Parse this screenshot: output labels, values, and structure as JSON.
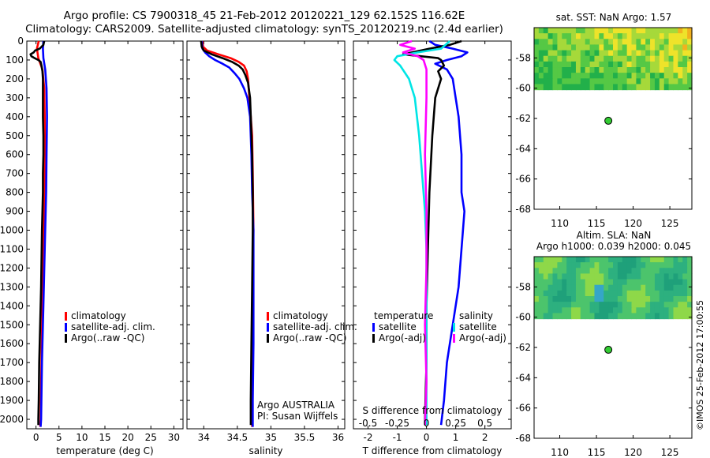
{
  "header": {
    "line1": "Argo profile: CS 7900318_45 21-Feb-2012 20120221_129 62.152S 116.62E",
    "line2": "Climatology: CARS2009. Satellite-adjusted climatology: synTS_20120219.nc (2.4d earlier)"
  },
  "credit": "©IMOS 25-Feb-2012 17:00:55",
  "colors": {
    "climatology": "#ff0000",
    "satellite_adj": "#0000ff",
    "argo": "#000000",
    "sat_salinity": "#00e5e5",
    "argo_salinity_adj": "#ff00ff",
    "map_land_bg": "#ffffff",
    "float_marker": "#33cc33"
  },
  "depth_axis": {
    "ticks": [
      0,
      100,
      200,
      300,
      400,
      500,
      600,
      700,
      800,
      900,
      1000,
      1100,
      1200,
      1300,
      1400,
      1500,
      1600,
      1700,
      1800,
      1900,
      2000
    ],
    "range": [
      0,
      2050
    ],
    "inverted": true
  },
  "chart_data": [
    {
      "id": "temperature",
      "type": "line",
      "xlabel": "temperature (deg C)",
      "xlim": [
        -2,
        32
      ],
      "xticks": [
        0,
        5,
        10,
        15,
        20,
        25,
        30
      ],
      "legend": [
        "climatology",
        "satellite-adj. clim.",
        "Argo(..raw -QC)"
      ],
      "series": [
        {
          "name": "climatology",
          "color_key": "climatology",
          "points": [
            [
              0.6,
              0
            ],
            [
              0.2,
              40
            ],
            [
              0.5,
              90
            ],
            [
              1.4,
              150
            ],
            [
              1.8,
              250
            ],
            [
              1.9,
              400
            ],
            [
              1.9,
              600
            ],
            [
              1.8,
              800
            ],
            [
              1.6,
              1100
            ],
            [
              1.4,
              1400
            ],
            [
              1.2,
              1700
            ],
            [
              1.0,
              2000
            ],
            [
              0.9,
              2040
            ]
          ]
        },
        {
          "name": "satellite-adj. clim.",
          "color_key": "satellite_adj",
          "points": [
            [
              1.6,
              0
            ],
            [
              1.5,
              40
            ],
            [
              1.6,
              90
            ],
            [
              2.0,
              150
            ],
            [
              2.3,
              250
            ],
            [
              2.4,
              400
            ],
            [
              2.3,
              600
            ],
            [
              2.2,
              800
            ],
            [
              1.9,
              1100
            ],
            [
              1.6,
              1400
            ],
            [
              1.3,
              1700
            ],
            [
              1.1,
              2000
            ],
            [
              1.0,
              2040
            ]
          ]
        },
        {
          "name": "Argo(..raw -QC)",
          "color_key": "argo",
          "points": [
            [
              1.8,
              0
            ],
            [
              1.6,
              20
            ],
            [
              0.8,
              40
            ],
            [
              -0.2,
              50
            ],
            [
              -0.5,
              60
            ],
            [
              -1.2,
              70
            ],
            [
              -1.0,
              80
            ],
            [
              -0.3,
              90
            ],
            [
              0.5,
              100
            ],
            [
              1.0,
              110
            ],
            [
              1.2,
              130
            ],
            [
              1.4,
              160
            ],
            [
              1.5,
              200
            ],
            [
              1.5,
              300
            ],
            [
              1.5,
              400
            ],
            [
              1.6,
              500
            ],
            [
              1.6,
              600
            ],
            [
              1.5,
              700
            ],
            [
              1.5,
              800
            ],
            [
              1.3,
              1000
            ],
            [
              1.1,
              1300
            ],
            [
              0.9,
              1500
            ],
            [
              0.7,
              1700
            ],
            [
              0.6,
              1900
            ],
            [
              0.5,
              2000
            ],
            [
              0.5,
              2030
            ]
          ]
        }
      ]
    },
    {
      "id": "salinity",
      "type": "line",
      "xlabel": "salinity",
      "xlim": [
        33.75,
        36.1
      ],
      "xticks": [
        34,
        34.5,
        35,
        35.5,
        36
      ],
      "legend": [
        "climatology",
        "satellite-adj. clim.",
        "Argo(..raw -QC)"
      ],
      "annotation": [
        "Argo AUSTRALIA",
        "PI: Susan Wijffels"
      ],
      "series": [
        {
          "name": "climatology",
          "color_key": "climatology",
          "points": [
            [
              33.98,
              0
            ],
            [
              33.99,
              30
            ],
            [
              34.05,
              50
            ],
            [
              34.22,
              70
            ],
            [
              34.4,
              90
            ],
            [
              34.52,
              110
            ],
            [
              34.6,
              130
            ],
            [
              34.64,
              160
            ],
            [
              34.66,
              200
            ],
            [
              34.68,
              300
            ],
            [
              34.7,
              400
            ],
            [
              34.72,
              500
            ],
            [
              34.73,
              700
            ],
            [
              34.74,
              1000
            ],
            [
              34.73,
              1300
            ],
            [
              34.73,
              1600
            ],
            [
              34.72,
              1900
            ],
            [
              34.72,
              2040
            ]
          ]
        },
        {
          "name": "satellite-adj. clim.",
          "color_key": "satellite_adj",
          "points": [
            [
              33.97,
              0
            ],
            [
              33.98,
              40
            ],
            [
              34.02,
              60
            ],
            [
              34.08,
              80
            ],
            [
              34.17,
              100
            ],
            [
              34.28,
              120
            ],
            [
              34.38,
              140
            ],
            [
              34.46,
              170
            ],
            [
              34.53,
              200
            ],
            [
              34.6,
              250
            ],
            [
              34.65,
              300
            ],
            [
              34.69,
              400
            ],
            [
              34.71,
              600
            ],
            [
              34.72,
              800
            ],
            [
              34.74,
              1000
            ],
            [
              34.74,
              1300
            ],
            [
              34.74,
              1600
            ],
            [
              34.73,
              1900
            ],
            [
              34.73,
              2040
            ]
          ]
        },
        {
          "name": "Argo(..raw -QC)",
          "color_key": "argo",
          "points": [
            [
              33.96,
              0
            ],
            [
              33.97,
              30
            ],
            [
              34.0,
              50
            ],
            [
              34.12,
              70
            ],
            [
              34.28,
              90
            ],
            [
              34.42,
              110
            ],
            [
              34.52,
              130
            ],
            [
              34.58,
              150
            ],
            [
              34.62,
              180
            ],
            [
              34.66,
              220
            ],
            [
              34.69,
              300
            ],
            [
              34.7,
              400
            ],
            [
              34.72,
              600
            ],
            [
              34.73,
              800
            ],
            [
              34.73,
              1000
            ],
            [
              34.72,
              1300
            ],
            [
              34.71,
              1600
            ],
            [
              34.7,
              1900
            ],
            [
              34.7,
              2030
            ]
          ]
        }
      ]
    },
    {
      "id": "difference",
      "type": "line",
      "xlabel": "T difference from climatology",
      "xlabel_top": "S difference from climatology",
      "xlim": [
        -2.5,
        2.9
      ],
      "xticks": [
        -2,
        -1,
        0,
        1,
        2
      ],
      "xticks_top": [
        "-0.5",
        "-0.25",
        "0",
        "0.25",
        "0.5"
      ],
      "legend_temperature_title": "temperature",
      "legend_salinity_title": "salinity",
      "legend_temperature": [
        "satellite",
        "Argo(-adj)"
      ],
      "legend_salinity": [
        "satellite",
        "Argo(-adj)"
      ],
      "series": [
        {
          "name": "temperature satellite",
          "color_key": "satellite_adj",
          "points": [
            [
              0.1,
              0
            ],
            [
              0.3,
              20
            ],
            [
              0.9,
              40
            ],
            [
              1.4,
              60
            ],
            [
              1.2,
              80
            ],
            [
              0.7,
              100
            ],
            [
              0.3,
              120
            ],
            [
              0.7,
              150
            ],
            [
              0.9,
              200
            ],
            [
              1.0,
              300
            ],
            [
              1.1,
              400
            ],
            [
              1.2,
              600
            ],
            [
              1.2,
              800
            ],
            [
              1.3,
              900
            ],
            [
              1.2,
              1100
            ],
            [
              1.1,
              1300
            ],
            [
              0.9,
              1500
            ],
            [
              0.7,
              1700
            ],
            [
              0.6,
              1900
            ],
            [
              0.5,
              2030
            ]
          ]
        },
        {
          "name": "temperature Argo(-adj)",
          "color_key": "argo",
          "points": [
            [
              1.2,
              0
            ],
            [
              0.8,
              20
            ],
            [
              0.1,
              40
            ],
            [
              -0.5,
              60
            ],
            [
              -0.8,
              70
            ],
            [
              -0.2,
              80
            ],
            [
              0.4,
              90
            ],
            [
              0.5,
              100
            ],
            [
              0.6,
              130
            ],
            [
              0.4,
              160
            ],
            [
              0.5,
              200
            ],
            [
              0.3,
              300
            ],
            [
              0.2,
              500
            ],
            [
              0.1,
              800
            ],
            [
              0.05,
              1100
            ],
            [
              0.0,
              1400
            ],
            [
              0.0,
              1700
            ],
            [
              -0.05,
              2000
            ],
            [
              -0.05,
              2030
            ]
          ]
        },
        {
          "name": "salinity satellite",
          "color_key": "sat_salinity",
          "points": [
            [
              0.8,
              0
            ],
            [
              0.5,
              40
            ],
            [
              -0.3,
              60
            ],
            [
              -1.0,
              80
            ],
            [
              -1.1,
              100
            ],
            [
              -0.9,
              130
            ],
            [
              -0.6,
              200
            ],
            [
              -0.4,
              300
            ],
            [
              -0.25,
              500
            ],
            [
              -0.15,
              700
            ],
            [
              -0.05,
              900
            ],
            [
              0.0,
              1100
            ],
            [
              0.0,
              1400
            ],
            [
              0.0,
              1700
            ],
            [
              0.0,
              2030
            ]
          ]
        },
        {
          "name": "salinity Argo(-adj)",
          "color_key": "argo_salinity_adj",
          "points": [
            [
              -0.5,
              0
            ],
            [
              -0.9,
              20
            ],
            [
              -0.4,
              40
            ],
            [
              -0.8,
              60
            ],
            [
              -0.3,
              80
            ],
            [
              -0.1,
              100
            ],
            [
              0.0,
              150
            ],
            [
              0.0,
              300
            ],
            [
              -0.05,
              600
            ],
            [
              0.0,
              900
            ],
            [
              0.0,
              1200
            ],
            [
              -0.05,
              1500
            ],
            [
              0.0,
              1800
            ],
            [
              -0.05,
              2030
            ]
          ]
        }
      ]
    },
    {
      "id": "sst_map",
      "type": "heatmap",
      "title": "sat. SST: NaN Argo: 1.57",
      "xticks": [
        110,
        115,
        120,
        125
      ],
      "yticks": [
        -58,
        -60,
        -62,
        -64,
        -66,
        -68
      ],
      "xlim": [
        106.5,
        128
      ],
      "ylim": [
        -68,
        -56
      ],
      "data_ylim": [
        -60.1,
        -56
      ],
      "gradient": [
        "#22b04a",
        "#55c845",
        "#a6d93a",
        "#eee32a",
        "#f2b11e"
      ],
      "float": {
        "lon": 116.62,
        "lat": -62.152
      }
    },
    {
      "id": "sla_map",
      "type": "heatmap",
      "title_line1": "Altim. SLA: NaN",
      "title_line2": "Argo h1000: 0.039 h2000: 0.045",
      "xticks": [
        110,
        115,
        120,
        125
      ],
      "yticks": [
        -58,
        -60,
        -62,
        -64,
        -66,
        -68
      ],
      "xlim": [
        106.5,
        128
      ],
      "ylim": [
        -68,
        -56
      ],
      "data_ylim": [
        -60.1,
        -56
      ],
      "gradient": [
        "#1fa07a",
        "#2db07f",
        "#4cc46c",
        "#8ed849",
        "#35a6c8"
      ],
      "float": {
        "lon": 116.62,
        "lat": -62.152
      }
    }
  ]
}
